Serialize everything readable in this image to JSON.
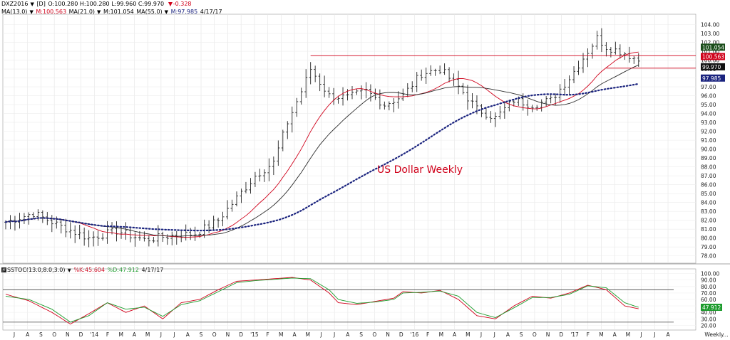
{
  "header": {
    "symbol": "DXZ2016",
    "interval": "[D]",
    "ohlc": "O:100.280 H:100.280 L:99.960 C:99.970",
    "change": "-0.328",
    "ma_label": "MA(13.0)",
    "ma13": "M:100.563",
    "ma21": "MA(21.0)",
    "ma21_val": "M:101.054",
    "ma55": "MA(55.0)",
    "ma55_val": "M:97.985",
    "date": "4/17/17"
  },
  "stoch_header": {
    "label": "SSTOC(13.0,8.0,3.0)",
    "k": "%K:45.604",
    "d": "%D:47.912",
    "date": "4/17/17"
  },
  "chart_title": "US Dollar Weekly",
  "footer_label": "Weekly...",
  "colors": {
    "ma13": "#d0021b",
    "ma21": "#2e2e2e",
    "ma55": "#1a237e",
    "stoch_k": "#d0021b",
    "stoch_d": "#1c9b2c",
    "title": "#d0021b"
  },
  "chart_data": [
    {
      "type": "ohlc",
      "title": "US Dollar Weekly",
      "y_ticks": [
        "104.00",
        "103.00",
        "102.00",
        "101.00",
        "100.00",
        "99.00",
        "98.00",
        "97.00",
        "96.00",
        "95.00",
        "94.00",
        "93.00",
        "92.00",
        "91.00",
        "90.00",
        "89.00",
        "88.00",
        "87.00",
        "86.00",
        "85.00",
        "84.00",
        "83.00",
        "82.00",
        "81.00",
        "80.00",
        "79.00",
        "78.00"
      ],
      "ylim": [
        77.5,
        105
      ],
      "x_labels": [
        "J",
        "A",
        "S",
        "O",
        "N",
        "D",
        "'14",
        "F",
        "M",
        "A",
        "M",
        "J",
        "J",
        "A",
        "S",
        "O",
        "N",
        "D",
        "'15",
        "F",
        "M",
        "A",
        "M",
        "J",
        "J",
        "A",
        "S",
        "O",
        "N",
        "D",
        "'16",
        "F",
        "M",
        "A",
        "M",
        "J",
        "J",
        "A",
        "S",
        "O",
        "N",
        "D",
        "'17",
        "F",
        "M",
        "A",
        "M",
        "J",
        "J",
        "A",
        "Weekly..."
      ],
      "price_labels": [
        {
          "value": 101.054,
          "text": "101.054",
          "color": "#1a1a1a"
        },
        {
          "value": 100.563,
          "text": "100.563",
          "color": "#d0021b"
        },
        {
          "value": 99.97,
          "text": "99.970",
          "color": "#ffffff"
        },
        {
          "value": 97.985,
          "text": "97.985",
          "color": "#1a237e"
        }
      ],
      "horizontal_lines": [
        100.5,
        99.1
      ],
      "close_anchors": [
        [
          0,
          81.8
        ],
        [
          6,
          82.8
        ],
        [
          12,
          81.3
        ],
        [
          18,
          80.0
        ],
        [
          24,
          80.8
        ],
        [
          30,
          79.8
        ],
        [
          36,
          80.3
        ],
        [
          41,
          80.5
        ],
        [
          46,
          82.0
        ],
        [
          50,
          84.5
        ],
        [
          54,
          87.0
        ],
        [
          58,
          88.5
        ],
        [
          61,
          93.0
        ],
        [
          64,
          96.5
        ],
        [
          66,
          99.0
        ],
        [
          68,
          97.5
        ],
        [
          70,
          96.0
        ],
        [
          74,
          95.8
        ],
        [
          78,
          96.5
        ],
        [
          82,
          95.0
        ],
        [
          86,
          96.0
        ],
        [
          90,
          98.5
        ],
        [
          94,
          99.0
        ],
        [
          98,
          97.0
        ],
        [
          102,
          94.5
        ],
        [
          106,
          93.5
        ],
        [
          110,
          95.5
        ],
        [
          114,
          95.0
        ],
        [
          118,
          95.5
        ],
        [
          122,
          98.0
        ],
        [
          126,
          101.0
        ],
        [
          128,
          102.5
        ],
        [
          130,
          101.5
        ],
        [
          134,
          100.8
        ],
        [
          137,
          99.97
        ]
      ],
      "series": [
        {
          "name": "MA(13.0)",
          "last": 100.563
        },
        {
          "name": "MA(21.0)",
          "last": 101.054
        },
        {
          "name": "MA(55.0)",
          "last": 97.985
        }
      ]
    },
    {
      "type": "line",
      "title": "SSTOC(13.0,8.0,3.0)",
      "y_ticks": [
        "100.00",
        "90.00",
        "80.00",
        "70.00",
        "60.00",
        "50.00",
        "40.00",
        "30.00",
        "20.00"
      ],
      "ylim": [
        15,
        105
      ],
      "hlines": [
        75,
        25
      ],
      "last_label": {
        "value": 47.912,
        "text": "47.912"
      },
      "k_anchors": [
        [
          0,
          68
        ],
        [
          5,
          58
        ],
        [
          10,
          40
        ],
        [
          14,
          22
        ],
        [
          18,
          38
        ],
        [
          22,
          55
        ],
        [
          26,
          40
        ],
        [
          30,
          50
        ],
        [
          34,
          30
        ],
        [
          38,
          55
        ],
        [
          42,
          60
        ],
        [
          46,
          75
        ],
        [
          50,
          88
        ],
        [
          54,
          90
        ],
        [
          58,
          92
        ],
        [
          62,
          94
        ],
        [
          66,
          90
        ],
        [
          70,
          70
        ],
        [
          72,
          55
        ],
        [
          76,
          52
        ],
        [
          80,
          57
        ],
        [
          84,
          62
        ],
        [
          86,
          72
        ],
        [
          90,
          70
        ],
        [
          94,
          74
        ],
        [
          98,
          60
        ],
        [
          102,
          35
        ],
        [
          106,
          30
        ],
        [
          110,
          50
        ],
        [
          114,
          65
        ],
        [
          118,
          62
        ],
        [
          122,
          70
        ],
        [
          126,
          82
        ],
        [
          130,
          75
        ],
        [
          134,
          50
        ],
        [
          137,
          45.6
        ]
      ],
      "d_anchors": [
        [
          0,
          65
        ],
        [
          5,
          60
        ],
        [
          10,
          45
        ],
        [
          14,
          25
        ],
        [
          18,
          35
        ],
        [
          22,
          55
        ],
        [
          26,
          45
        ],
        [
          30,
          48
        ],
        [
          34,
          34
        ],
        [
          38,
          52
        ],
        [
          42,
          58
        ],
        [
          46,
          72
        ],
        [
          50,
          86
        ],
        [
          54,
          89
        ],
        [
          58,
          91
        ],
        [
          62,
          93
        ],
        [
          66,
          92
        ],
        [
          70,
          75
        ],
        [
          72,
          60
        ],
        [
          76,
          54
        ],
        [
          80,
          56
        ],
        [
          84,
          60
        ],
        [
          86,
          70
        ],
        [
          90,
          71
        ],
        [
          94,
          73
        ],
        [
          98,
          65
        ],
        [
          102,
          40
        ],
        [
          106,
          32
        ],
        [
          110,
          47
        ],
        [
          114,
          63
        ],
        [
          118,
          63
        ],
        [
          122,
          68
        ],
        [
          126,
          81
        ],
        [
          130,
          78
        ],
        [
          134,
          55
        ],
        [
          137,
          47.9
        ]
      ]
    }
  ]
}
